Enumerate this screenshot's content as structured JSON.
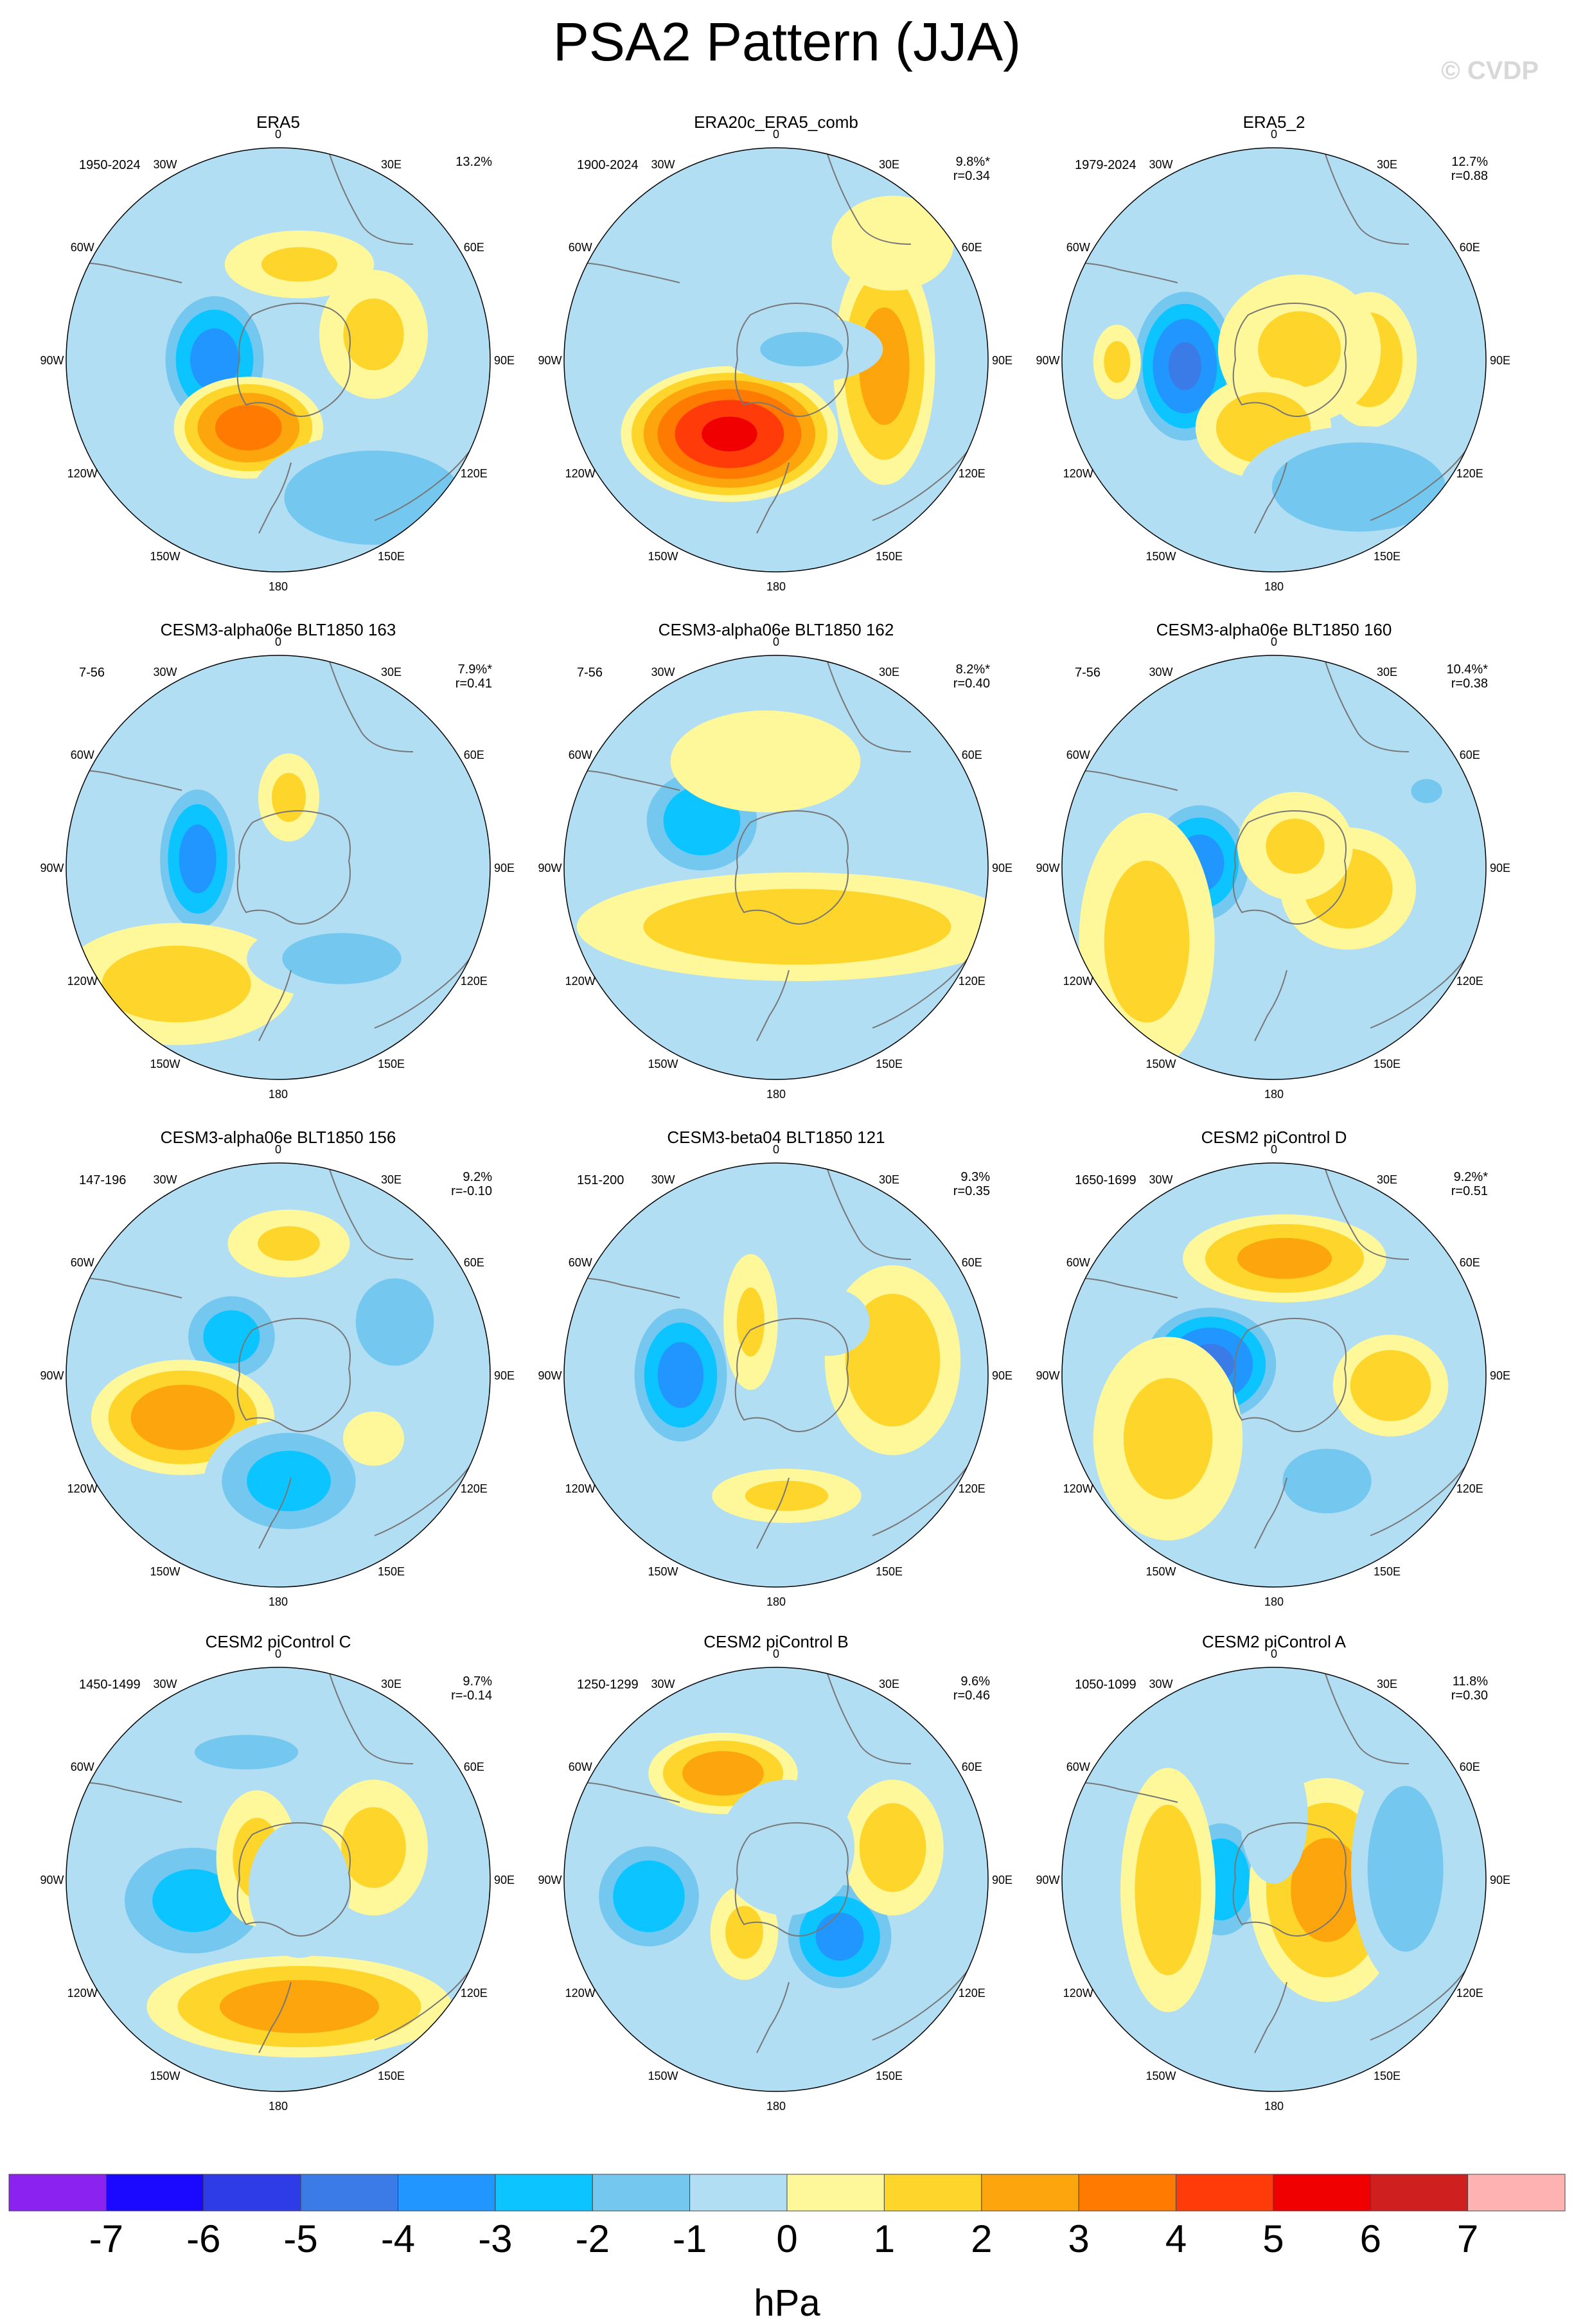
{
  "title": "PSA2 Pattern (JJA)",
  "copyright": "© CVDP",
  "units": "hPa",
  "colorbar": {
    "levels": [
      -7,
      -6,
      -5,
      -4,
      -3,
      -2,
      -1,
      0,
      1,
      2,
      3,
      4,
      5,
      6,
      7
    ],
    "tick_labels": [
      "-7",
      "-6",
      "-5",
      "-4",
      "-3",
      "-2",
      "-1",
      "0",
      "1",
      "2",
      "3",
      "4",
      "5",
      "6",
      "7"
    ],
    "colors": [
      "#8b22f0",
      "#1a08ff",
      "#2e3ce8",
      "#3a7be8",
      "#2196ff",
      "#0cc4ff",
      "#74c8f0",
      "#b2def4",
      "#fff89a",
      "#fdd52b",
      "#fda50c",
      "#ff7a00",
      "#ff3b0a",
      "#f00000",
      "#d01f1f",
      "#ffb2b2"
    ]
  },
  "map_labels": {
    "lon": [
      "0",
      "30E",
      "60E",
      "90E",
      "120E",
      "150E",
      "180",
      "150W",
      "120W",
      "90W",
      "60W",
      "30W"
    ]
  },
  "chart_data": {
    "type": "heatmap",
    "projection": "south polar stereographic",
    "panels": [
      {
        "title": "ERA5",
        "years": "1950-2024",
        "pct": "13.2%",
        "r": "",
        "blobs": [
          [
            -0.3,
            0.0,
            0.17,
            0.22,
            -3.5
          ],
          [
            -0.14,
            0.32,
            0.22,
            0.15,
            3.6
          ],
          [
            0.45,
            0.65,
            0.36,
            0.19,
            -2.0
          ],
          [
            0.45,
            -0.12,
            0.16,
            0.19,
            1.3
          ],
          [
            0.1,
            -0.45,
            0.22,
            0.1,
            1.2
          ]
        ]
      },
      {
        "title": "ERA20c_ERA5_comb",
        "years": "1900-2024",
        "pct": "9.8%*",
        "r": "r=0.34",
        "blobs": [
          [
            -0.22,
            0.35,
            0.32,
            0.2,
            5.2
          ],
          [
            0.51,
            0.03,
            0.15,
            0.35,
            2.5
          ],
          [
            0.12,
            -0.05,
            0.24,
            0.1,
            -1.2
          ],
          [
            0.55,
            -0.55,
            0.18,
            0.14,
            0.8
          ]
        ]
      },
      {
        "title": "ERA5_2",
        "years": "1979-2024",
        "pct": "12.7%",
        "r": "r=0.88",
        "blobs": [
          [
            -0.42,
            0.03,
            0.17,
            0.25,
            -4.2
          ],
          [
            0.45,
            0.0,
            0.14,
            0.2,
            1.8
          ],
          [
            0.12,
            -0.05,
            0.24,
            0.22,
            1.2
          ],
          [
            -0.05,
            0.32,
            0.2,
            0.15,
            1.8
          ],
          [
            0.4,
            0.6,
            0.35,
            0.18,
            -2.0
          ],
          [
            -0.74,
            0.01,
            0.07,
            0.11,
            1.3
          ]
        ]
      },
      {
        "title": "CESM3-alpha06e BLT1850 163",
        "years": "7-56",
        "pct": "7.9%*",
        "r": "r=0.41",
        "blobs": [
          [
            -0.38,
            -0.04,
            0.13,
            0.24,
            -3.5
          ],
          [
            -0.48,
            0.55,
            0.35,
            0.18,
            1.5
          ],
          [
            0.3,
            0.43,
            0.28,
            0.12,
            -1.5
          ],
          [
            0.05,
            -0.33,
            0.09,
            0.13,
            1.3
          ]
        ]
      },
      {
        "title": "CESM3-alpha06e BLT1850 162",
        "years": "7-56",
        "pct": "8.2%*",
        "r": "r=0.40",
        "blobs": [
          [
            -0.35,
            -0.22,
            0.2,
            0.18,
            -2.8
          ],
          [
            0.1,
            0.28,
            0.65,
            0.16,
            1.8
          ],
          [
            -0.05,
            -0.5,
            0.28,
            0.15,
            0.8
          ]
        ]
      },
      {
        "title": "CESM3-alpha06e BLT1850 160",
        "years": "7-56",
        "pct": "10.4%*",
        "r": "r=0.38",
        "blobs": [
          [
            -0.35,
            -0.02,
            0.17,
            0.2,
            -3.5
          ],
          [
            0.35,
            0.1,
            0.2,
            0.18,
            1.6
          ],
          [
            -0.6,
            0.35,
            0.2,
            0.38,
            1.5
          ],
          [
            0.1,
            -0.1,
            0.17,
            0.16,
            1.2
          ],
          [
            0.72,
            -0.36,
            0.09,
            0.07,
            -1.2
          ]
        ]
      },
      {
        "title": "CESM3-alpha06e BLT1850 156",
        "years": "147-196",
        "pct": "9.2%",
        "r": "r=-0.10",
        "blobs": [
          [
            -0.22,
            -0.18,
            0.16,
            0.15,
            -2.6
          ],
          [
            -0.45,
            0.2,
            0.27,
            0.17,
            2.8
          ],
          [
            0.05,
            0.5,
            0.25,
            0.18,
            -2.5
          ],
          [
            0.55,
            -0.25,
            0.17,
            0.19,
            -1.7
          ],
          [
            0.05,
            -0.62,
            0.18,
            0.1,
            1.2
          ],
          [
            0.45,
            0.3,
            0.09,
            0.08,
            1.0
          ]
        ]
      },
      {
        "title": "CESM3-beta04 BLT1850 121",
        "years": "151-200",
        "pct": "9.3%",
        "r": "r=0.35",
        "blobs": [
          [
            -0.45,
            0.0,
            0.16,
            0.23,
            -3.5
          ],
          [
            0.55,
            -0.07,
            0.2,
            0.28,
            1.8
          ],
          [
            -0.12,
            -0.25,
            0.08,
            0.2,
            1.2
          ],
          [
            0.05,
            0.57,
            0.22,
            0.08,
            1.3
          ],
          [
            0.25,
            -0.25,
            0.12,
            0.1,
            -0.8
          ]
        ]
      },
      {
        "title": "CESM2 piControl D",
        "years": "1650-1699",
        "pct": "9.2%*",
        "r": "r=0.51",
        "blobs": [
          [
            -0.3,
            -0.05,
            0.22,
            0.19,
            -4.3
          ],
          [
            0.05,
            -0.55,
            0.3,
            0.13,
            2.4
          ],
          [
            0.55,
            0.05,
            0.17,
            0.15,
            1.8
          ],
          [
            -0.5,
            0.3,
            0.22,
            0.3,
            1.4
          ],
          [
            0.25,
            0.5,
            0.22,
            0.16,
            -1.4
          ]
        ]
      },
      {
        "title": "CESM2 piControl C",
        "years": "1450-1499",
        "pct": "9.7%",
        "r": "r=-0.14",
        "blobs": [
          [
            -0.4,
            0.1,
            0.26,
            0.2,
            -2.4
          ],
          [
            0.1,
            0.6,
            0.45,
            0.15,
            2.6
          ],
          [
            -0.1,
            -0.1,
            0.12,
            0.2,
            1.4
          ],
          [
            0.45,
            -0.15,
            0.16,
            0.2,
            1.4
          ],
          [
            -0.15,
            -0.6,
            0.3,
            0.1,
            -1.2
          ],
          [
            0.1,
            0.05,
            0.15,
            0.2,
            -0.8
          ]
        ]
      },
      {
        "title": "CESM2 piControl B",
        "years": "1250-1299",
        "pct": "9.6%",
        "r": "r=0.46",
        "blobs": [
          [
            -0.6,
            0.08,
            0.18,
            0.18,
            -2.9
          ],
          [
            0.3,
            0.27,
            0.18,
            0.18,
            -3.4
          ],
          [
            -0.25,
            -0.5,
            0.22,
            0.12,
            2.7
          ],
          [
            0.55,
            -0.15,
            0.15,
            0.2,
            1.6
          ],
          [
            -0.15,
            0.25,
            0.1,
            0.14,
            1.3
          ],
          [
            0.05,
            -0.15,
            0.2,
            0.2,
            -0.8
          ]
        ]
      },
      {
        "title": "CESM2 piControl A",
        "years": "1050-1099",
        "pct": "11.8%",
        "r": "r=0.30",
        "blobs": [
          [
            -0.25,
            0.0,
            0.14,
            0.2,
            -3.0
          ],
          [
            0.25,
            0.05,
            0.23,
            0.33,
            2.4
          ],
          [
            -0.5,
            0.05,
            0.14,
            0.36,
            1.8
          ],
          [
            0.62,
            -0.05,
            0.16,
            0.35,
            -1.8
          ],
          [
            0.0,
            -0.3,
            0.1,
            0.2,
            -0.6
          ]
        ]
      }
    ]
  }
}
